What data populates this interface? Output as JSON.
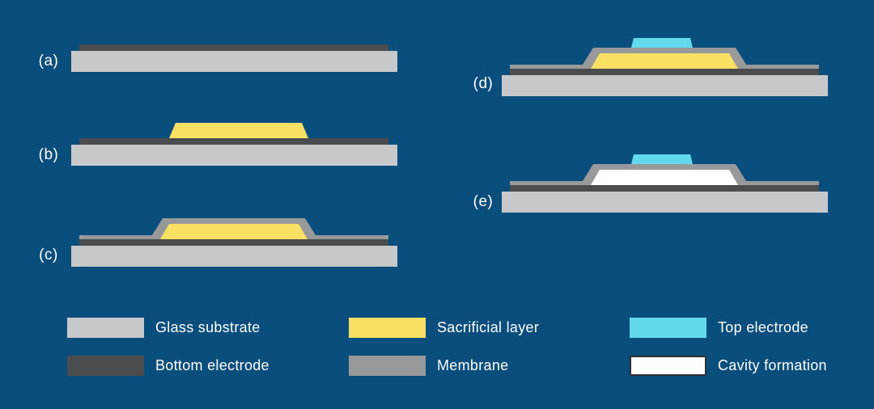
{
  "steps": [
    {
      "id": "a",
      "label": "(a)",
      "layers": [
        "glass_substrate",
        "bottom_electrode"
      ]
    },
    {
      "id": "b",
      "label": "(b)",
      "layers": [
        "glass_substrate",
        "bottom_electrode",
        "sacrificial_layer"
      ]
    },
    {
      "id": "c",
      "label": "(c)",
      "layers": [
        "glass_substrate",
        "bottom_electrode",
        "membrane",
        "sacrificial_layer"
      ]
    },
    {
      "id": "d",
      "label": "(d)",
      "layers": [
        "glass_substrate",
        "bottom_electrode",
        "membrane",
        "sacrificial_layer",
        "top_electrode"
      ]
    },
    {
      "id": "e",
      "label": "(e)",
      "layers": [
        "glass_substrate",
        "bottom_electrode",
        "membrane",
        "cavity",
        "top_electrode"
      ]
    }
  ],
  "legend": [
    {
      "key": "glass_substrate",
      "label": "Glass substrate"
    },
    {
      "key": "bottom_electrode",
      "label": "Bottom electrode"
    },
    {
      "key": "sacrificial_layer",
      "label": "Sacrificial layer"
    },
    {
      "key": "membrane",
      "label": "Membrane"
    },
    {
      "key": "top_electrode",
      "label": "Top electrode"
    },
    {
      "key": "cavity",
      "label": "Cavity formation"
    }
  ],
  "colors": {
    "background": "#0a4e7d",
    "glass_substrate": "#c7c8ca",
    "bottom_electrode": "#4a4c4e",
    "sacrificial_layer": "#fae163",
    "membrane": "#97999b",
    "top_electrode": "#62d9ec",
    "cavity": "#ffffff",
    "cavity_border": "#2e2f31",
    "text": "#ffffff"
  }
}
